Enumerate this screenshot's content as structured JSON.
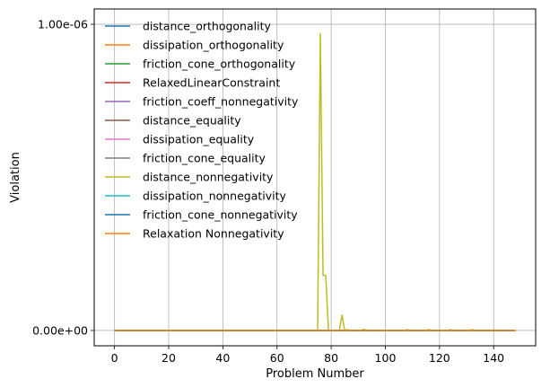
{
  "chart_data": {
    "type": "line",
    "title": "",
    "xlabel": "Problem Number",
    "ylabel": "Violation",
    "xlim": [
      -7.5,
      155.5
    ],
    "ylim": [
      -5e-08,
      1.05e-06
    ],
    "x_ticks": [
      0,
      20,
      40,
      60,
      80,
      100,
      120,
      140
    ],
    "x_tick_labels": [
      "0",
      "20",
      "40",
      "60",
      "80",
      "100",
      "120",
      "140"
    ],
    "y_ticks": [
      0,
      1e-06
    ],
    "y_tick_labels": [
      "0.00e+00",
      "1.00e-06"
    ],
    "grid": true,
    "legend_position": "upper-left",
    "x_range": [
      0,
      148
    ],
    "series": [
      {
        "name": "distance_orthogonality",
        "color": "#1f77b4",
        "points": [
          [
            0,
            0
          ],
          [
            148,
            0
          ]
        ]
      },
      {
        "name": "dissipation_orthogonality",
        "color": "#ff7f0e",
        "points": [
          [
            0,
            0
          ],
          [
            148,
            0
          ]
        ]
      },
      {
        "name": "friction_cone_orthogonality",
        "color": "#2ca02c",
        "points": [
          [
            0,
            0
          ],
          [
            148,
            0
          ]
        ]
      },
      {
        "name": "RelaxedLinearConstraint",
        "color": "#d62728",
        "points": [
          [
            0,
            0
          ],
          [
            148,
            0
          ]
        ]
      },
      {
        "name": "friction_coeff_nonnegativity",
        "color": "#9467bd",
        "points": [
          [
            0,
            0
          ],
          [
            148,
            0
          ]
        ]
      },
      {
        "name": "distance_equality",
        "color": "#8c564b",
        "points": [
          [
            0,
            0
          ],
          [
            148,
            0
          ]
        ]
      },
      {
        "name": "dissipation_equality",
        "color": "#e377c2",
        "points": [
          [
            0,
            0
          ],
          [
            148,
            0
          ]
        ]
      },
      {
        "name": "friction_cone_equality",
        "color": "#7f7f7f",
        "points": [
          [
            0,
            0
          ],
          [
            148,
            0
          ]
        ]
      },
      {
        "name": "distance_nonnegativity",
        "color": "#bcbd22",
        "points": [
          [
            0,
            0
          ],
          [
            75,
            0
          ],
          [
            76,
            9.7e-07
          ],
          [
            77,
            1.8e-07
          ],
          [
            78,
            1.8e-07
          ],
          [
            79,
            0
          ],
          [
            83,
            0
          ],
          [
            84,
            5e-08
          ],
          [
            85,
            0
          ],
          [
            86,
            3e-09
          ],
          [
            87,
            0
          ],
          [
            91,
            0
          ],
          [
            92,
            4e-09
          ],
          [
            93,
            0
          ],
          [
            107,
            0
          ],
          [
            108,
            3e-09
          ],
          [
            109,
            0
          ],
          [
            115,
            0
          ],
          [
            116,
            3e-09
          ],
          [
            117,
            0
          ],
          [
            123,
            0
          ],
          [
            124,
            3e-09
          ],
          [
            125,
            0
          ],
          [
            131,
            0
          ],
          [
            132,
            3e-09
          ],
          [
            133,
            0
          ],
          [
            139,
            0
          ],
          [
            140,
            2e-09
          ],
          [
            141,
            0
          ],
          [
            148,
            0
          ]
        ]
      },
      {
        "name": "dissipation_nonnegativity",
        "color": "#17becf",
        "points": [
          [
            0,
            0
          ],
          [
            148,
            0
          ]
        ]
      },
      {
        "name": "friction_cone_nonnegativity",
        "color": "#1f77b4",
        "points": [
          [
            0,
            0
          ],
          [
            148,
            0
          ]
        ]
      },
      {
        "name": "Relaxation Nonnegativity",
        "color": "#ff7f0e",
        "points": [
          [
            0,
            0
          ],
          [
            148,
            0
          ]
        ]
      }
    ]
  }
}
